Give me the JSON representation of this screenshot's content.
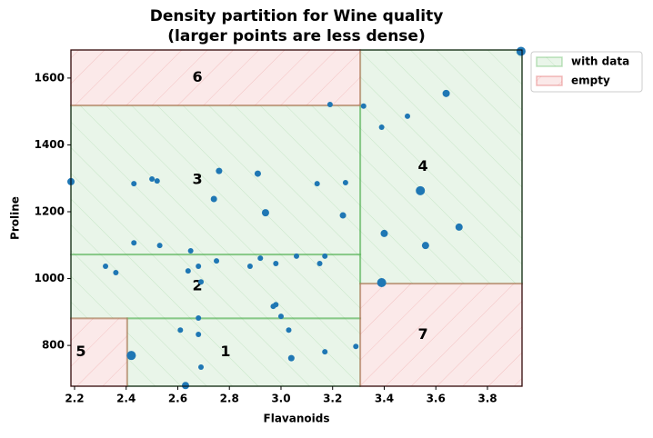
{
  "chart_data": {
    "type": "scatter",
    "title": "Density partition for Wine quality",
    "subtitle": "(larger points are less dense)",
    "x_label": "Flavanoids",
    "y_label": "Proline",
    "xlim": [
      2.186,
      3.934
    ],
    "ylim": [
      678,
      1684
    ],
    "xticks": [
      2.2,
      2.4,
      2.6,
      2.8,
      {
        "value": 3,
        "label": "3.0"
      },
      3.2,
      3.4,
      3.6,
      3.8
    ],
    "yticks": [
      800,
      1000,
      1200,
      1400,
      1600
    ],
    "legend_position": "outside upper right",
    "legend": [
      {
        "name": "with data",
        "color": "#2ca02c"
      },
      {
        "name": "empty",
        "color": "#d62728"
      }
    ],
    "regions": [
      {
        "label": "1",
        "group": 0,
        "x": [
          2.404,
          3.307
        ],
        "y": [
          678,
          881
        ]
      },
      {
        "label": "2",
        "group": 0,
        "x": [
          2.186,
          3.307
        ],
        "y": [
          881,
          1072
        ]
      },
      {
        "label": "3",
        "group": 0,
        "x": [
          2.186,
          3.307
        ],
        "y": [
          1072,
          1518
        ]
      },
      {
        "label": "4",
        "group": 0,
        "x": [
          3.307,
          3.934
        ],
        "y": [
          985,
          1684
        ]
      },
      {
        "label": "5",
        "group": 1,
        "x": [
          2.186,
          2.404
        ],
        "y": [
          678,
          881
        ]
      },
      {
        "label": "6",
        "group": 1,
        "x": [
          2.186,
          3.307
        ],
        "y": [
          1518,
          1684
        ]
      },
      {
        "label": "7",
        "group": 1,
        "x": [
          3.307,
          3.934
        ],
        "y": [
          678,
          985
        ]
      }
    ],
    "points": {
      "color": "#1f77b4",
      "x": [
        2.186,
        2.42,
        2.63,
        2.69,
        2.68,
        2.68,
        2.61,
        2.69,
        2.68,
        2.64,
        2.65,
        2.75,
        2.88,
        2.92,
        2.98,
        3.06,
        3.15,
        3.17,
        2.97,
        2.98,
        3.0,
        3.03,
        3.04,
        3.17,
        3.29,
        2.32,
        2.36,
        2.43,
        2.53,
        2.43,
        2.5,
        2.52,
        2.74,
        2.76,
        2.91,
        2.94,
        3.14,
        3.25,
        3.24,
        3.19,
        3.32,
        3.39,
        3.49,
        3.64,
        3.93,
        3.54,
        3.69,
        3.4,
        3.56,
        3.39
      ],
      "y": [
        1290,
        770,
        680,
        735,
        833,
        882,
        846,
        990,
        1037,
        1023,
        1083,
        1053,
        1037,
        1061,
        1045,
        1067,
        1045,
        1067,
        917,
        922,
        887,
        846,
        762,
        781,
        797,
        1037,
        1018,
        1107,
        1099,
        1284,
        1298,
        1292,
        1238,
        1322,
        1314,
        1197,
        1284,
        1287,
        1189,
        1521,
        1516,
        1453,
        1486,
        1554,
        1680,
        1263,
        1154,
        1135,
        1099,
        988
      ],
      "sizes": [
        4,
        5,
        4,
        3,
        3,
        3,
        3,
        3,
        3,
        3,
        3,
        3,
        3,
        3,
        3,
        3,
        3,
        3,
        3,
        3,
        3,
        3,
        3.5,
        3,
        3,
        3,
        3,
        3,
        3,
        3,
        3,
        3,
        3.5,
        3.5,
        3.5,
        4,
        3,
        3,
        3.5,
        3,
        3,
        3,
        3,
        4,
        5,
        5,
        4,
        4,
        4,
        5
      ]
    }
  }
}
